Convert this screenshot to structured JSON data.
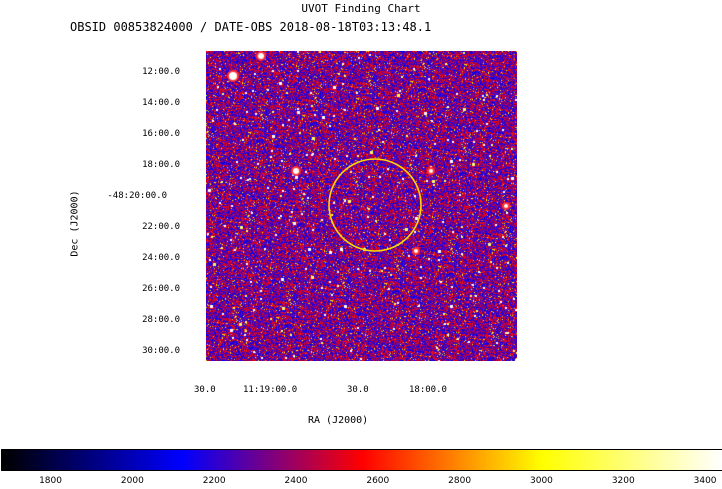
{
  "chart_data": {
    "type": "heatmap",
    "title": "UVOT Finding Chart",
    "subtitle": "OBSID 00853824000 / DATE-OBS 2018-08-18T03:13:48.1",
    "xlabel": "RA (J2000)",
    "ylabel": "Dec (J2000)",
    "x_ticks": [
      "30.0",
      "11:19:00.0",
      "30.0",
      "18:00.0"
    ],
    "y_ticks": [
      "12:00.0",
      "14:00.0",
      "16:00.0",
      "18:00.0",
      "-48:20:00.0",
      "22:00.0",
      "24:00.0",
      "26:00.0",
      "28:00.0",
      "30:00.0"
    ],
    "colorbar": {
      "ticks": [
        1800,
        2000,
        2200,
        2400,
        2600,
        2800,
        3000,
        3200,
        3400
      ],
      "range": [
        1680,
        3440
      ],
      "colormap": [
        "#000000",
        "#0000ff",
        "#ff0000",
        "#ffff00",
        "#ffffff"
      ]
    },
    "markers": [
      {
        "shape": "circle",
        "color": "#ffd700",
        "ra": "11:18:27",
        "dec": "-48:20:30",
        "radius_arcmin": 3
      }
    ],
    "background_color": "#ffffff"
  }
}
